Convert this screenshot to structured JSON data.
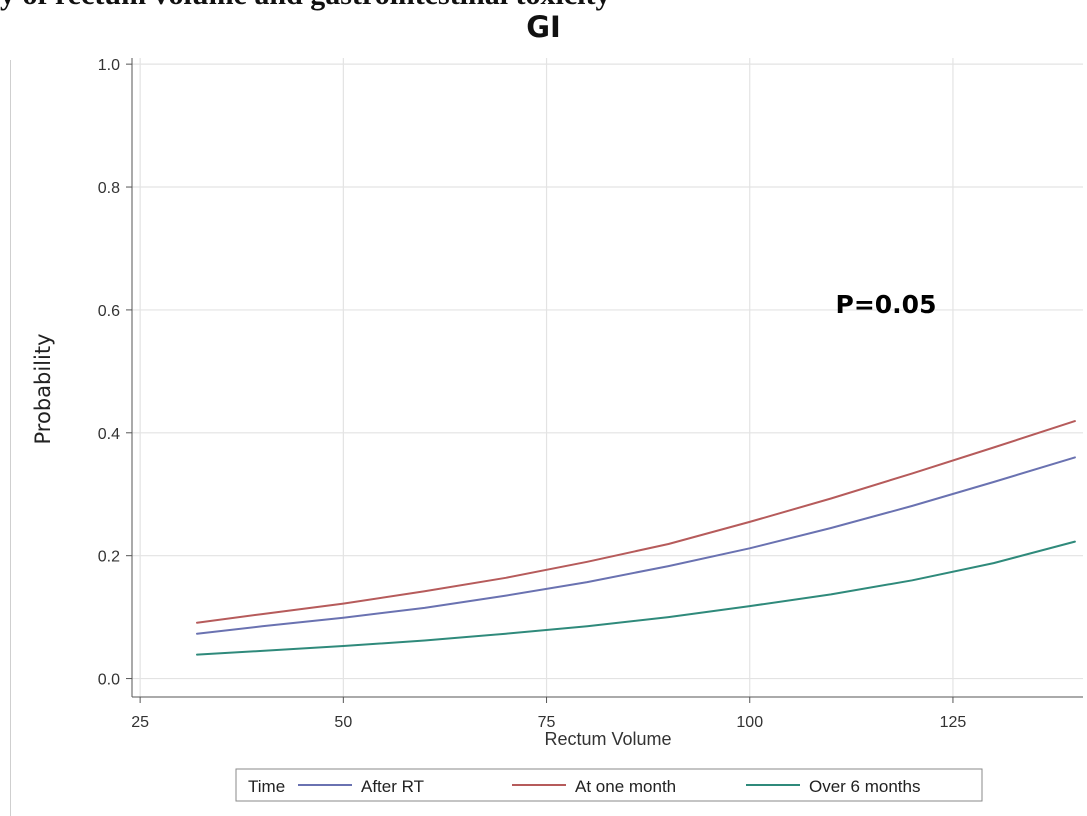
{
  "top_fragment": "y of rectum volume and gastrointestinal toxicity",
  "chart_data": {
    "type": "line",
    "title": "GI",
    "xlabel": "Rectum Volume",
    "ylabel": "Probability",
    "xlim": [
      24,
      141
    ],
    "ylim": [
      -0.03,
      1.01
    ],
    "xticks": [
      25,
      50,
      75,
      100,
      125
    ],
    "yticks": [
      "0.0",
      "0.2",
      "0.4",
      "0.6",
      "0.8",
      "1.0"
    ],
    "grid": true,
    "annotation": "P=0.05",
    "legend": {
      "title": "Time",
      "position": "bottom"
    },
    "x": [
      32,
      40,
      50,
      60,
      70,
      80,
      90,
      100,
      110,
      120,
      130,
      140
    ],
    "series": [
      {
        "name": "After RT",
        "color": "#6a72b1",
        "values": [
          0.073,
          0.085,
          0.099,
          0.115,
          0.135,
          0.157,
          0.183,
          0.212,
          0.245,
          0.281,
          0.32,
          0.36
        ]
      },
      {
        "name": "At one month",
        "color": "#b65b5b",
        "values": [
          0.091,
          0.105,
          0.122,
          0.142,
          0.164,
          0.19,
          0.219,
          0.255,
          0.293,
          0.334,
          0.376,
          0.419
        ]
      },
      {
        "name": "Over 6 months",
        "color": "#2f8a7b",
        "values": [
          0.039,
          0.045,
          0.053,
          0.062,
          0.073,
          0.085,
          0.1,
          0.118,
          0.137,
          0.16,
          0.188,
          0.223
        ]
      }
    ]
  }
}
